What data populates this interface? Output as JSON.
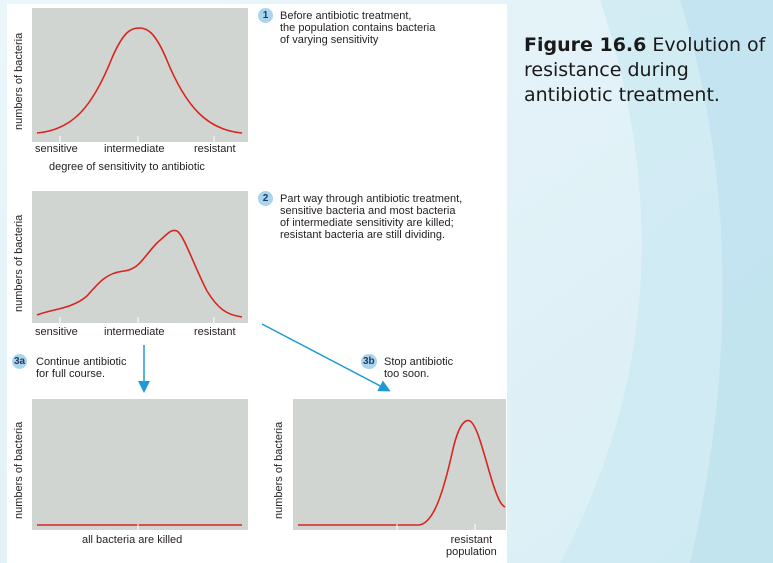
{
  "caption": {
    "label": "Figure 16.6",
    "text": " Evolution of resistance during antibiotic treatment."
  },
  "axis": {
    "y_label": "numbers of bacteria",
    "x_title_1": "degree of sensitivity to antibiotic"
  },
  "ticks": {
    "sensitive": "sensitive",
    "intermediate": "intermediate",
    "resistant": "resistant"
  },
  "steps": {
    "s1": {
      "badge": "1",
      "text": "Before antibiotic treatment,\nthe population contains bacteria\nof varying sensitivity"
    },
    "s2": {
      "badge": "2",
      "text": "Part way through antibiotic treatment,\nsensitive bacteria and most bacteria\nof intermediate sensitivity are killed;\nresistant bacteria are still dividing."
    },
    "s3a": {
      "badge": "3a",
      "text": "Continue antibiotic\nfor full course."
    },
    "s3b": {
      "badge": "3b",
      "text": "Stop antibiotic\ntoo soon."
    }
  },
  "panel3a_label": "all bacteria are killed",
  "panel3b_label": "resistant\npopulation",
  "colors": {
    "curve": "#d9251d",
    "plot_bg": "#d1d5d1",
    "arrow": "#1f9ad6",
    "badge": "#a9d4ef"
  }
}
